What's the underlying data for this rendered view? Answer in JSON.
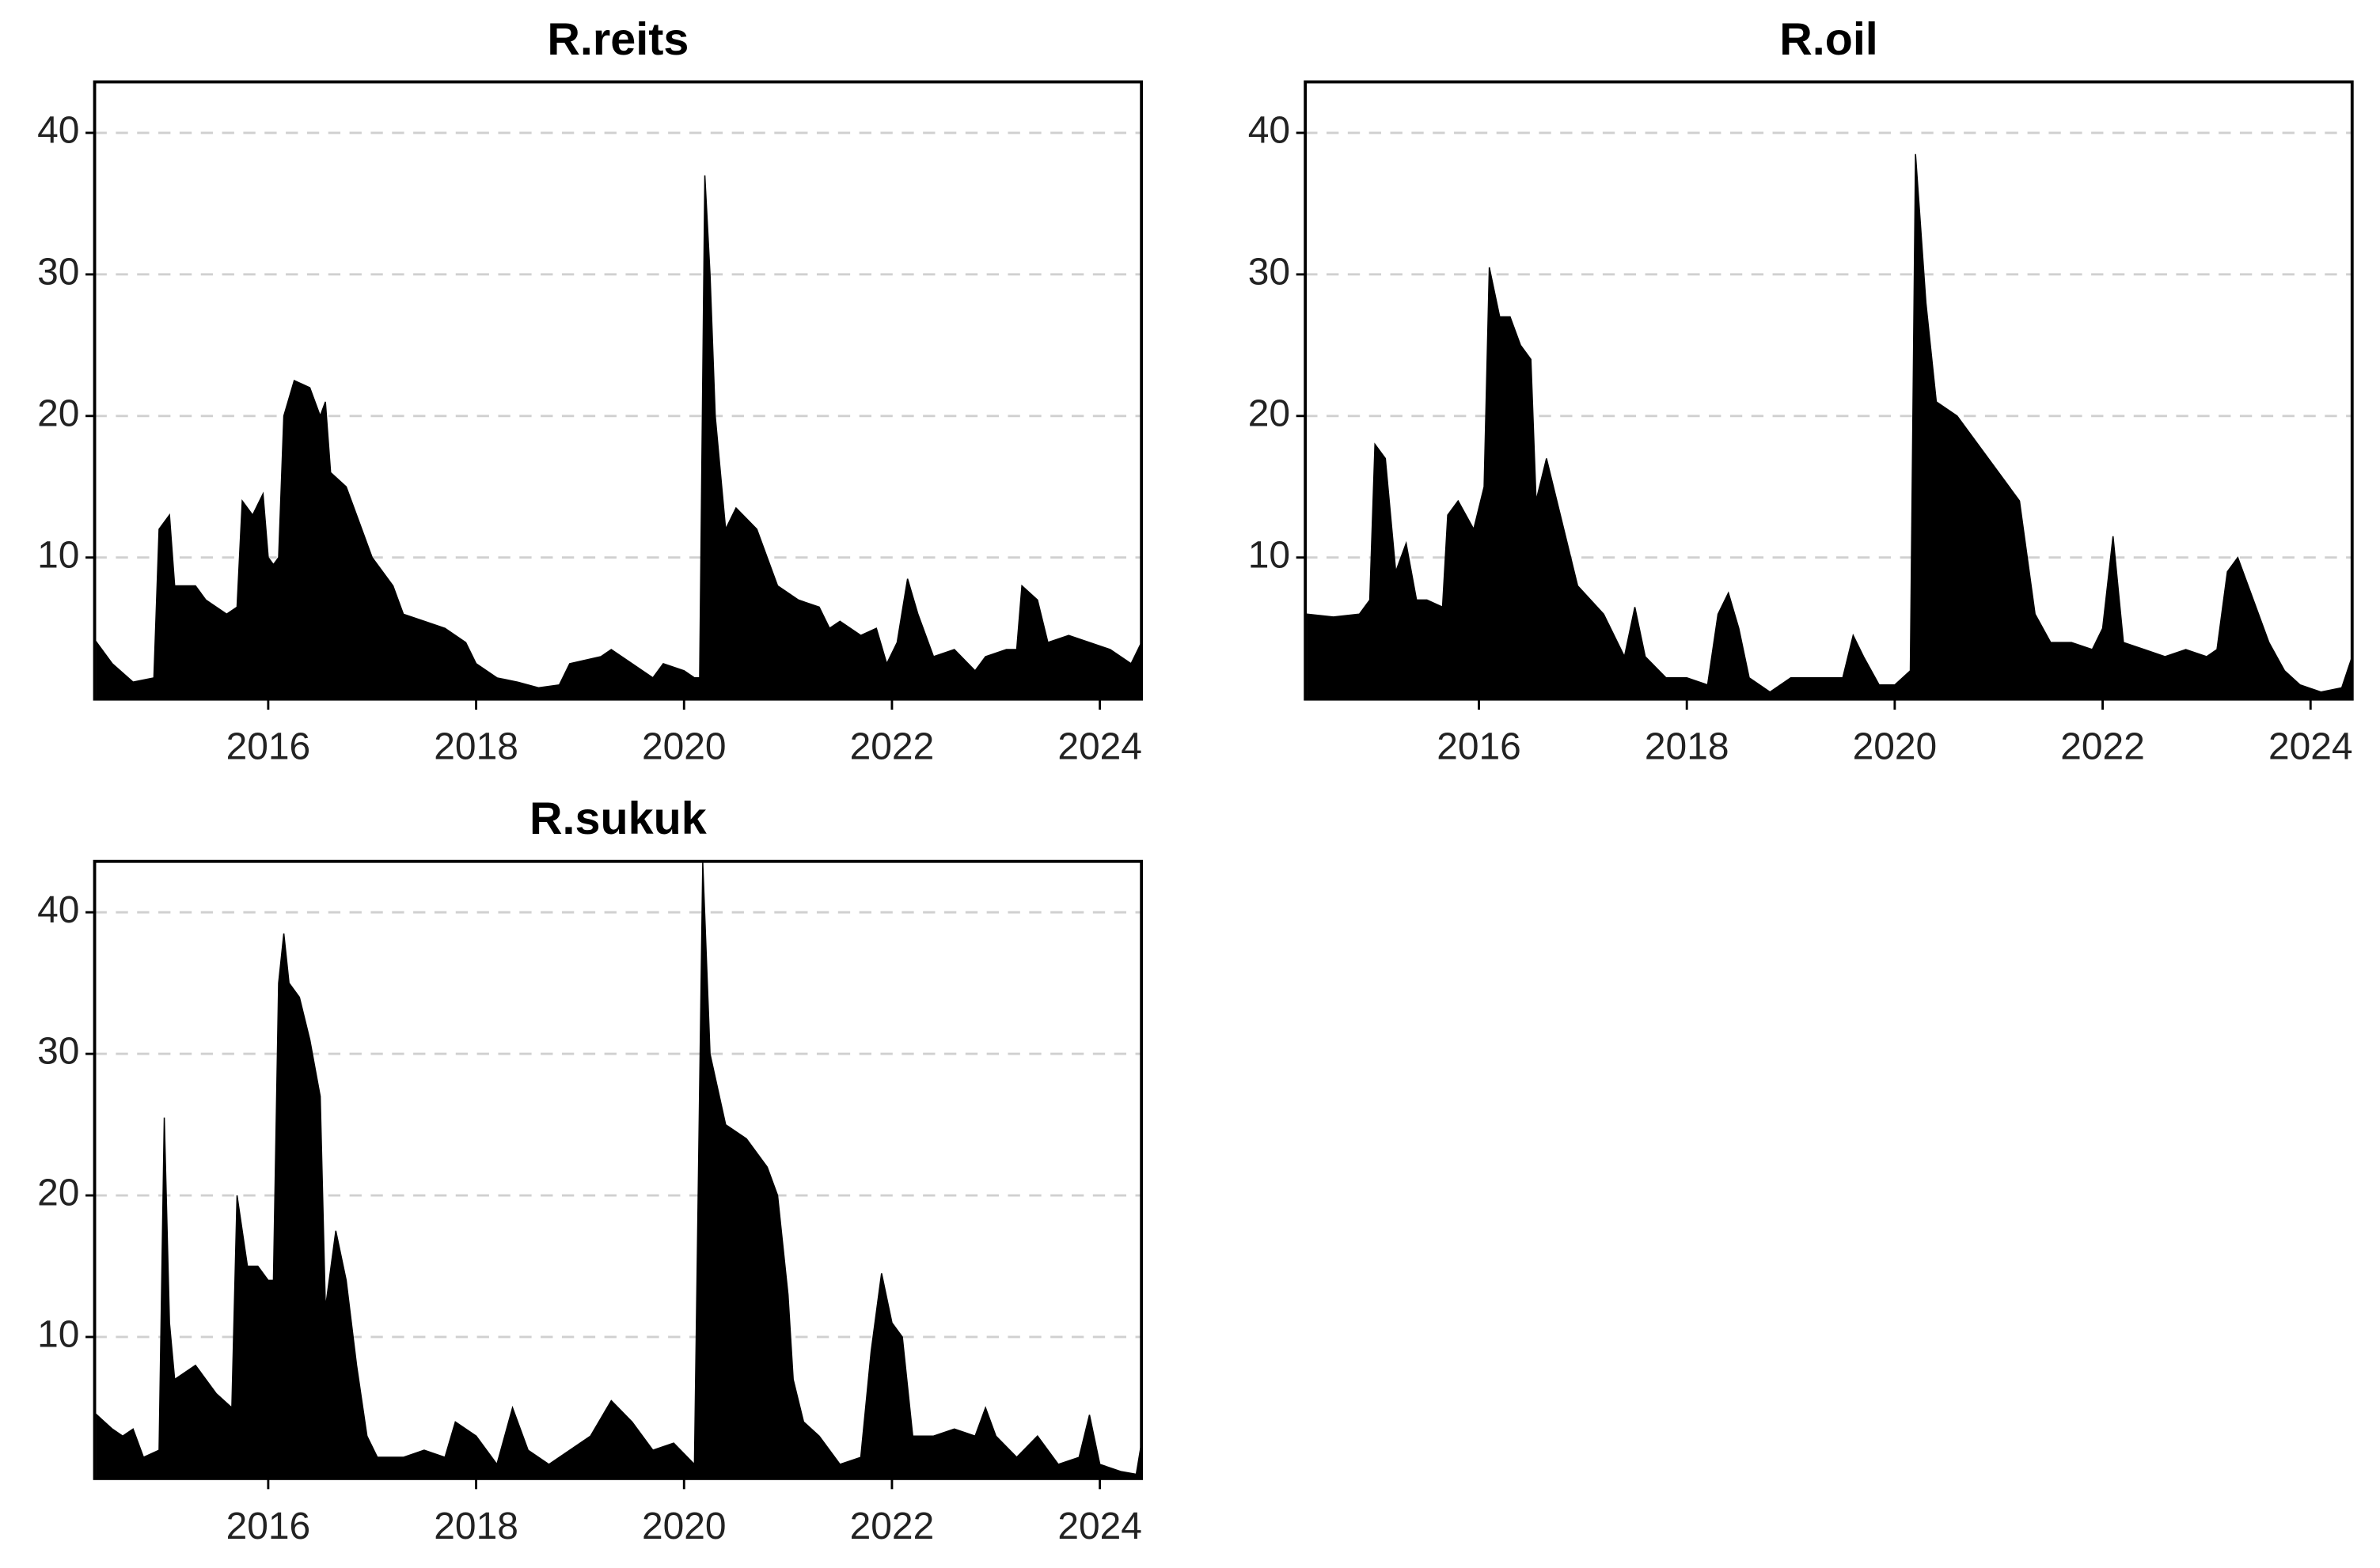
{
  "chart_data": [
    {
      "type": "area",
      "title": "R.reits",
      "color": "#000000",
      "grid": true,
      "xlim": [
        2014.33,
        2024.4
      ],
      "ylim": [
        0,
        43.6
      ],
      "xticks": [
        2016,
        2018,
        2020,
        2022,
        2024
      ],
      "yticks": [
        10,
        20,
        30,
        40
      ],
      "x": [
        2014.35,
        2014.5,
        2014.7,
        2014.9,
        2014.95,
        2015.05,
        2015.1,
        2015.3,
        2015.4,
        2015.6,
        2015.7,
        2015.75,
        2015.85,
        2015.95,
        2016.0,
        2016.05,
        2016.1,
        2016.15,
        2016.25,
        2016.4,
        2016.5,
        2016.55,
        2016.6,
        2016.75,
        2016.9,
        2017.0,
        2017.2,
        2017.3,
        2017.5,
        2017.7,
        2017.9,
        2018.0,
        2018.2,
        2018.4,
        2018.6,
        2018.8,
        2018.9,
        2019.2,
        2019.3,
        2019.5,
        2019.7,
        2019.8,
        2020.0,
        2020.1,
        2020.15,
        2020.2,
        2020.25,
        2020.3,
        2020.4,
        2020.5,
        2020.7,
        2020.8,
        2020.9,
        2021.1,
        2021.3,
        2021.4,
        2021.5,
        2021.7,
        2021.85,
        2021.95,
        2022.05,
        2022.15,
        2022.25,
        2022.4,
        2022.6,
        2022.8,
        2022.9,
        2023.1,
        2023.2,
        2023.25,
        2023.4,
        2023.5,
        2023.7,
        2023.9,
        2024.1,
        2024.3,
        2024.4
      ],
      "values": [
        4,
        2.5,
        1.2,
        1.5,
        12,
        13,
        8,
        8,
        7,
        6,
        6.5,
        14,
        13,
        14.5,
        10,
        9.5,
        10,
        20,
        22.5,
        22,
        20,
        21,
        16,
        15,
        12,
        10,
        8,
        6,
        5.5,
        5,
        4,
        2.5,
        1.5,
        1.2,
        0.8,
        1,
        2.5,
        3,
        3.5,
        2.5,
        1.5,
        2.5,
        2,
        1.5,
        1.5,
        37,
        30,
        20,
        12,
        13.5,
        12,
        10,
        8,
        7,
        6.5,
        5,
        5.5,
        4.5,
        5,
        2.5,
        4,
        8.5,
        6,
        3,
        3.5,
        2,
        3,
        3.5,
        3.5,
        8,
        7,
        4,
        4.5,
        4,
        3.5,
        2.5,
        4
      ]
    },
    {
      "type": "area",
      "title": "R.oil",
      "color": "#000000",
      "grid": true,
      "xlim": [
        2014.33,
        2024.4
      ],
      "ylim": [
        0,
        43.6
      ],
      "xticks": [
        2016,
        2018,
        2020,
        2022,
        2024
      ],
      "yticks": [
        10,
        20,
        30,
        40
      ],
      "x": [
        2014.35,
        2014.6,
        2014.85,
        2014.95,
        2015.0,
        2015.1,
        2015.2,
        2015.3,
        2015.4,
        2015.5,
        2015.65,
        2015.7,
        2015.8,
        2015.95,
        2016.05,
        2016.1,
        2016.2,
        2016.3,
        2016.4,
        2016.5,
        2016.55,
        2016.65,
        2016.75,
        2016.85,
        2016.95,
        2017.2,
        2017.4,
        2017.5,
        2017.6,
        2017.8,
        2018.0,
        2018.2,
        2018.3,
        2018.4,
        2018.5,
        2018.6,
        2018.8,
        2019.0,
        2019.3,
        2019.5,
        2019.6,
        2019.7,
        2019.85,
        2020.0,
        2020.15,
        2020.2,
        2020.3,
        2020.4,
        2020.6,
        2020.8,
        2021.0,
        2021.2,
        2021.35,
        2021.5,
        2021.7,
        2021.9,
        2022.0,
        2022.1,
        2022.2,
        2022.4,
        2022.6,
        2022.8,
        2023.0,
        2023.1,
        2023.2,
        2023.3,
        2023.4,
        2023.6,
        2023.75,
        2023.9,
        2024.1,
        2024.3,
        2024.4
      ],
      "values": [
        6,
        5.8,
        6,
        7,
        18,
        17,
        9,
        11,
        7,
        7,
        6.5,
        13,
        14,
        12,
        15,
        30.5,
        27,
        27,
        25,
        24,
        14,
        17,
        14,
        11,
        8,
        6,
        3,
        6.5,
        3,
        1.5,
        1.5,
        1,
        6,
        7.5,
        5,
        1.5,
        0.5,
        1.5,
        1.5,
        1.5,
        4.5,
        3,
        1,
        1,
        2,
        38.5,
        28,
        21,
        20,
        18,
        16,
        14,
        6,
        4,
        4,
        3.5,
        5,
        11.5,
        4,
        3.5,
        3,
        3.5,
        3,
        3.5,
        9,
        10,
        8,
        4,
        2,
        1,
        0.5,
        0.8,
        3
      ]
    },
    {
      "type": "area",
      "title": "R.sukuk",
      "color": "#000000",
      "grid": true,
      "xlim": [
        2014.33,
        2024.4
      ],
      "ylim": [
        0,
        43.6
      ],
      "xticks": [
        2016,
        2018,
        2020,
        2022,
        2024
      ],
      "yticks": [
        10,
        20,
        30,
        40
      ],
      "x": [
        2014.35,
        2014.5,
        2014.6,
        2014.7,
        2014.8,
        2014.95,
        2015.0,
        2015.05,
        2015.1,
        2015.3,
        2015.4,
        2015.5,
        2015.65,
        2015.7,
        2015.8,
        2015.9,
        2016.0,
        2016.05,
        2016.1,
        2016.15,
        2016.2,
        2016.3,
        2016.4,
        2016.5,
        2016.55,
        2016.65,
        2016.75,
        2016.85,
        2016.95,
        2017.05,
        2017.3,
        2017.5,
        2017.7,
        2017.8,
        2017.9,
        2018.0,
        2018.2,
        2018.35,
        2018.5,
        2018.7,
        2018.9,
        2019.1,
        2019.3,
        2019.5,
        2019.7,
        2019.9,
        2020.1,
        2020.18,
        2020.25,
        2020.4,
        2020.6,
        2020.8,
        2020.9,
        2021.0,
        2021.05,
        2021.15,
        2021.3,
        2021.5,
        2021.7,
        2021.8,
        2021.9,
        2022.0,
        2022.1,
        2022.2,
        2022.4,
        2022.6,
        2022.8,
        2022.9,
        2023.0,
        2023.2,
        2023.4,
        2023.6,
        2023.8,
        2023.9,
        2024.0,
        2024.2,
        2024.35,
        2024.4
      ],
      "values": [
        4.5,
        3.5,
        3,
        3.5,
        1.5,
        2,
        25.5,
        11,
        7,
        8,
        7,
        6,
        5,
        20,
        15,
        15,
        14,
        14,
        35,
        38.5,
        35,
        34,
        31,
        27,
        12,
        17.5,
        14,
        8,
        3,
        1.5,
        1.5,
        2,
        1.5,
        4,
        3.5,
        3,
        1,
        5,
        2,
        1,
        2,
        3,
        5.5,
        4,
        2,
        2.5,
        1,
        43.5,
        30,
        25,
        24,
        22,
        20,
        13,
        7,
        4,
        3,
        1,
        1.5,
        9,
        14.5,
        11,
        10,
        3,
        3,
        3.5,
        3,
        5,
        3,
        1.5,
        3,
        1,
        1.5,
        4.5,
        1,
        0.5,
        0.3,
        2.5
      ]
    }
  ]
}
